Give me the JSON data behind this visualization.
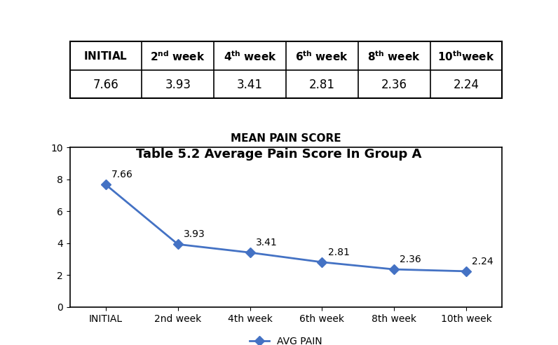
{
  "table_values": [
    7.66,
    3.93,
    3.41,
    2.81,
    2.36,
    2.24
  ],
  "chart_title": "Table 5.2 Average Pain Score In Group A",
  "chart_inner_title": "MEAN PAIN SCORE",
  "x_labels": [
    "INITIAL",
    "2nd week",
    "4th week",
    "6th week",
    "8th week",
    "10th week"
  ],
  "y_values": [
    7.66,
    3.93,
    3.41,
    2.81,
    2.36,
    2.24
  ],
  "ylim": [
    0,
    10
  ],
  "yticks": [
    0,
    2,
    4,
    6,
    8,
    10
  ],
  "line_color": "#4472C4",
  "marker_style": "D",
  "marker_size": 7,
  "legend_label": "AVG PAIN",
  "data_label_fontsize": 10,
  "axis_label_fontsize": 10,
  "inner_title_fontsize": 11,
  "chart_title_fontsize": 13,
  "table_header_fontsize": 11,
  "table_value_fontsize": 12,
  "border_color": "#000000",
  "background_color": "#ffffff"
}
